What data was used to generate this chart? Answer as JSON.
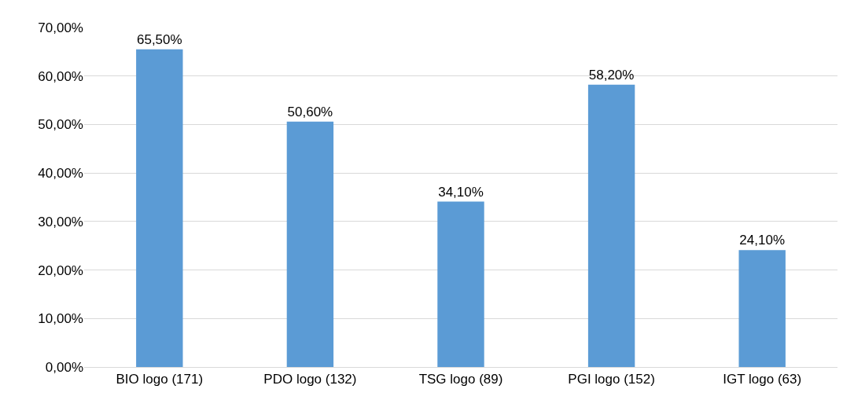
{
  "chart_data": {
    "type": "bar",
    "categories": [
      "BIO logo (171)",
      "PDO logo (132)",
      "TSG logo (89)",
      "PGI logo (152)",
      "IGT logo (63)"
    ],
    "values": [
      65.5,
      50.6,
      34.1,
      58.2,
      24.1
    ],
    "value_labels": [
      "65,50%",
      "50,60%",
      "34,10%",
      "58,20%",
      "24,10%"
    ],
    "color": "#5b9bd5",
    "ylim": [
      0,
      70
    ],
    "yticks": [
      {
        "value": 0,
        "label": "0,00%"
      },
      {
        "value": 10,
        "label": "10,00%"
      },
      {
        "value": 20,
        "label": "20,00%"
      },
      {
        "value": 30,
        "label": "30,00%"
      },
      {
        "value": 40,
        "label": "40,00%"
      },
      {
        "value": 50,
        "label": "50,00%"
      },
      {
        "value": 60,
        "label": "60,00%"
      },
      {
        "value": 70,
        "label": "70,00%"
      }
    ],
    "grid": "y",
    "legend": false
  }
}
